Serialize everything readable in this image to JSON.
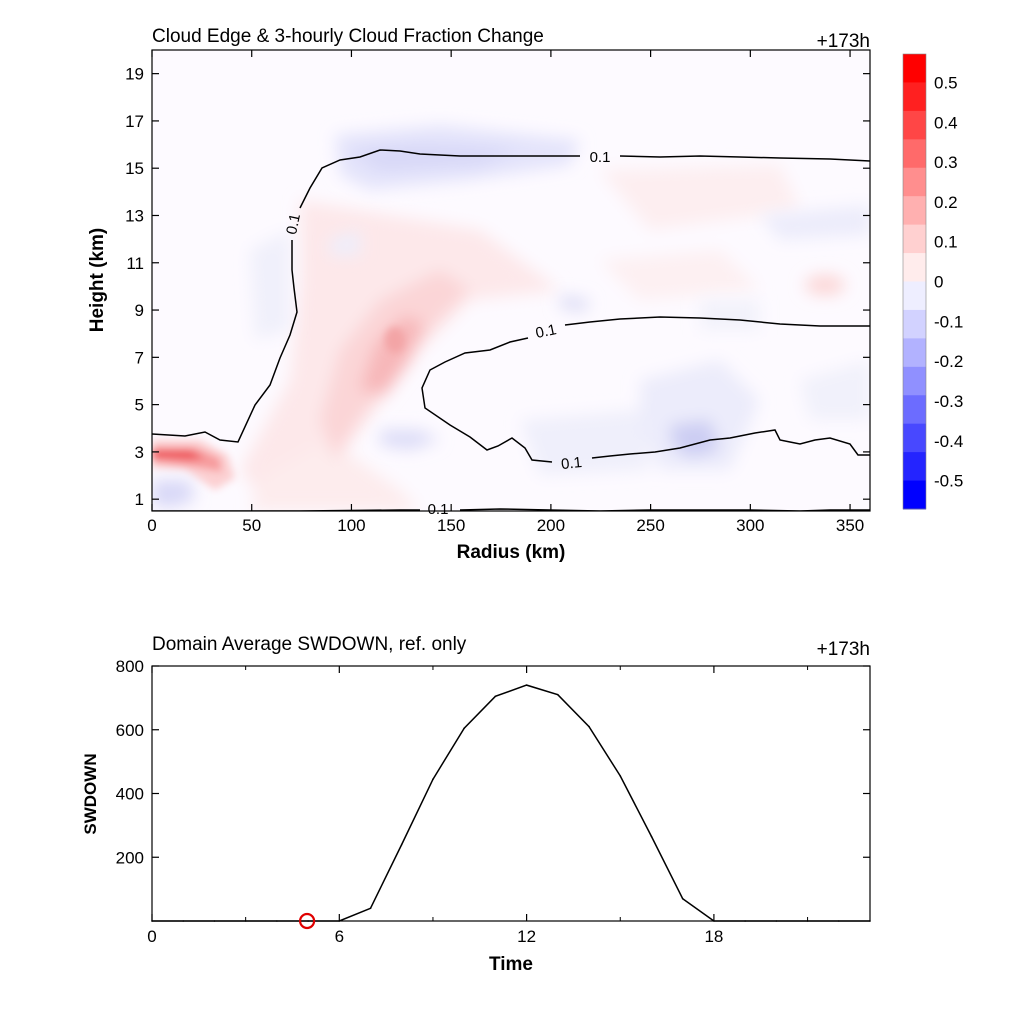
{
  "chart_data": [
    {
      "type": "heatmap",
      "title": "Cloud Edge & 3-hourly Cloud Fraction Change",
      "time_label": "+173h",
      "xlabel": "Radius (km)",
      "ylabel": "Height (km)",
      "xlim": [
        0,
        360
      ],
      "ylim": [
        0.5,
        20
      ],
      "xticks": [
        "0",
        "50",
        "100",
        "150",
        "200",
        "250",
        "300",
        "350"
      ],
      "yticks": [
        "1",
        "3",
        "5",
        "7",
        "9",
        "11",
        "13",
        "15",
        "17",
        "19"
      ],
      "colorbar": {
        "labels": [
          "0.5",
          "0.4",
          "0.3",
          "0.2",
          "0.1",
          "0",
          "-0.1",
          "-0.2",
          "-0.3",
          "-0.4",
          "-0.5"
        ],
        "colors": [
          "#ff0000",
          "#ff2020",
          "#ff4646",
          "#ff6a6a",
          "#ff8e8e",
          "#ffb0b0",
          "#ffd0d0",
          "#ffecec",
          "#eeeeff",
          "#d2d2ff",
          "#b2b2ff",
          "#9090ff",
          "#6c6cff",
          "#4848ff",
          "#2424ff",
          "#0000ff"
        ]
      },
      "contour_labels": [
        "0.1",
        "0.1",
        "0.1",
        "0.1",
        "0.1"
      ]
    },
    {
      "type": "line",
      "title": "Domain Average SWDOWN, ref. only",
      "time_label": "+173h",
      "xlabel": "Time",
      "ylabel": "SWDOWN",
      "xlim": [
        0,
        23
      ],
      "ylim": [
        0,
        800
      ],
      "xticks": [
        "0",
        "6",
        "12",
        "18"
      ],
      "yticks": [
        "200",
        "400",
        "600",
        "800"
      ],
      "x": [
        0,
        1,
        2,
        3,
        4,
        5,
        6,
        7,
        8,
        9,
        10,
        11,
        12,
        13,
        14,
        15,
        16,
        17,
        18,
        19,
        20,
        21,
        22,
        23
      ],
      "y": [
        0,
        0,
        0,
        0,
        0,
        0,
        0,
        40,
        240,
        445,
        605,
        705,
        740,
        710,
        610,
        455,
        265,
        70,
        0,
        0,
        0,
        0,
        0,
        0
      ],
      "marker": {
        "x": 5,
        "y": 0,
        "color": "#e00000"
      }
    }
  ]
}
